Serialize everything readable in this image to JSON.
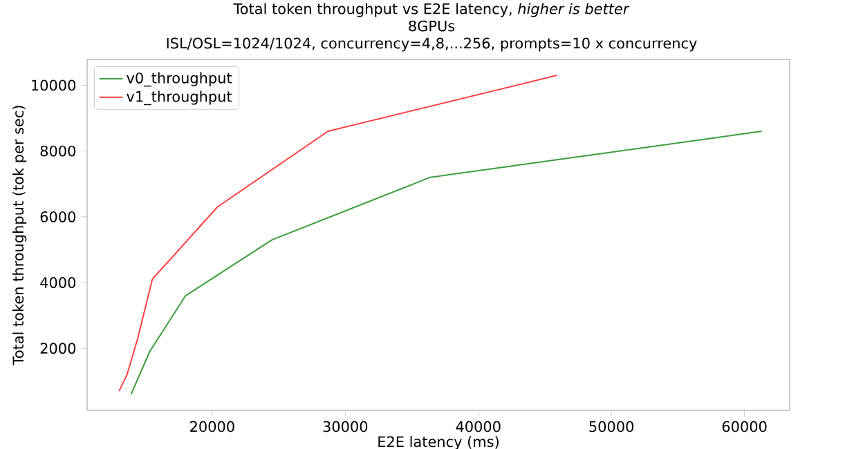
{
  "chart_data": {
    "type": "line",
    "title": "Total token throughput vs E2E latency, *higher is better*",
    "subtitle": "8GPUs\nISL/OSL=1024/1024, concurrency=4,8,...256, prompts=10 x concurrency",
    "xlabel": "E2E latency (ms)",
    "ylabel": "Total token throughput (tok per sec)",
    "series": [
      {
        "name": "v0_throughput",
        "color": "#3a9e3a",
        "x": [
          13900,
          15300,
          18000,
          24500,
          36400,
          61300
        ],
        "values": [
          600,
          1900,
          3600,
          5300,
          7200,
          8600
        ]
      },
      {
        "name": "v1_throughput",
        "color": "#ff4040",
        "x": [
          13000,
          13600,
          14400,
          15500,
          20400,
          28700,
          45900
        ],
        "values": [
          700,
          1200,
          2300,
          4100,
          6300,
          8600,
          10300
        ]
      }
    ],
    "xlim": [
      10600,
      63400
    ],
    "ylim": [
      115,
      10785
    ],
    "xticks": [
      20000,
      30000,
      40000,
      50000,
      60000
    ],
    "yticks": [
      2000,
      4000,
      6000,
      8000,
      10000
    ],
    "grid": false,
    "legend": "top left",
    "marker": "none",
    "line_style": "solid"
  }
}
